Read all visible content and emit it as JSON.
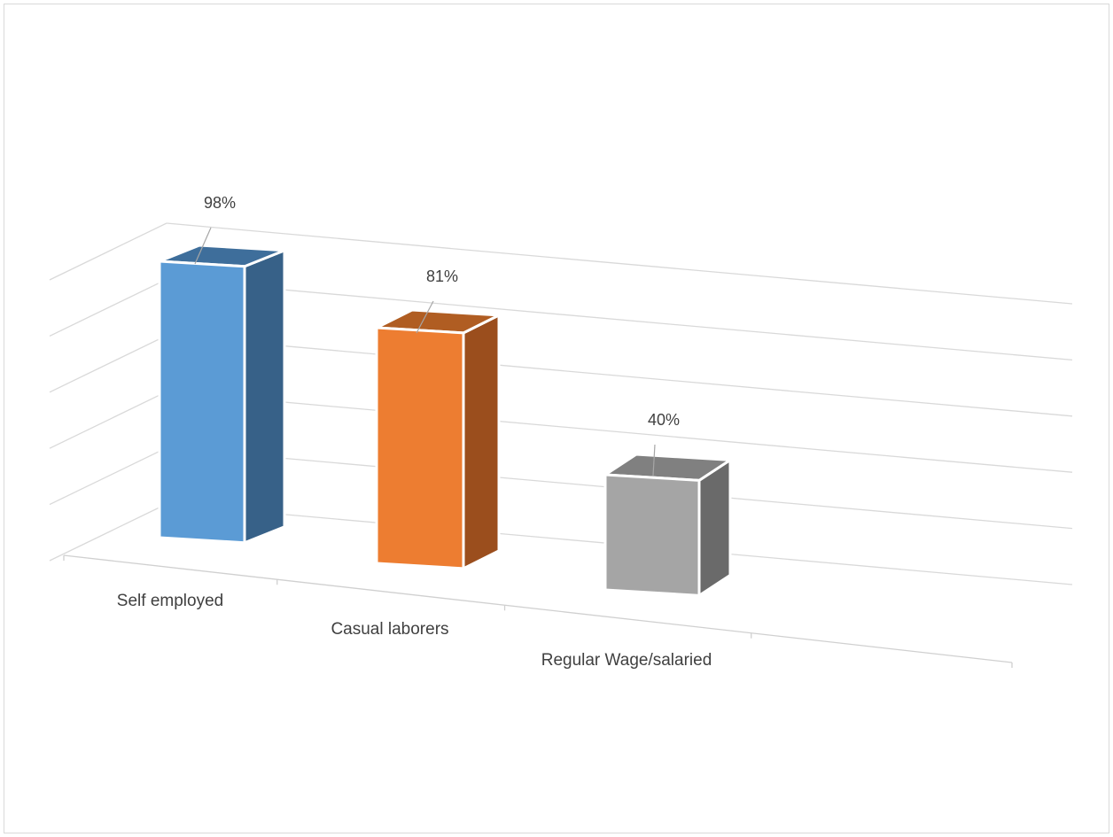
{
  "chart_data": {
    "type": "bar",
    "style": "3d-column",
    "title": "",
    "xlabel": "",
    "ylabel": "",
    "categories": [
      "Self employed",
      "Casual laborers",
      "Regular Wage/salaried"
    ],
    "values": [
      98,
      81,
      40
    ],
    "data_labels": [
      "98%",
      "81%",
      "40%"
    ],
    "ylim": [
      0,
      100
    ],
    "gridlines": true,
    "legend": "none",
    "colors": {
      "Self employed": {
        "front": "#5b9bd5",
        "side": "#376188",
        "top": "#3e6e9b"
      },
      "Casual laborers": {
        "front": "#ed7d31",
        "side": "#9b4e1d",
        "top": "#b05d22"
      },
      "Regular Wage/salaried": {
        "front": "#a5a5a5",
        "side": "#6a6a6a",
        "top": "#808080"
      }
    }
  }
}
